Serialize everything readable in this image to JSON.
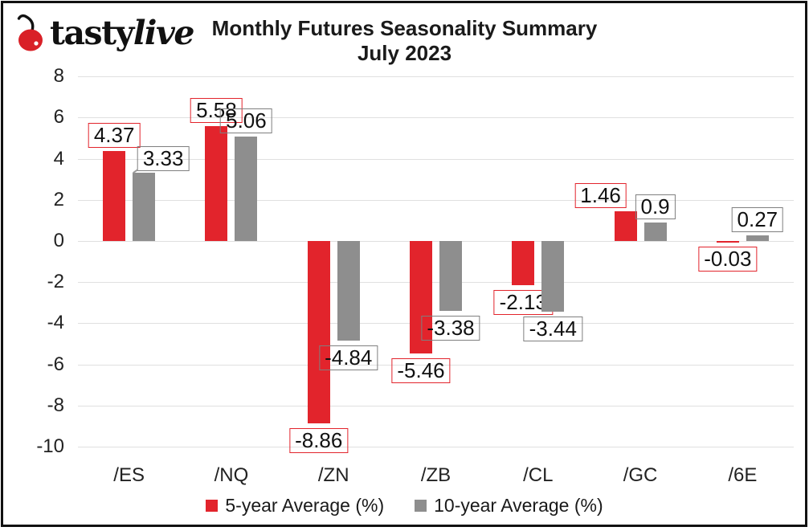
{
  "header": {
    "brand_tasty": "tasty",
    "brand_live": "live",
    "title_line1": "Monthly Futures Seasonality Summary",
    "title_line2": "July 2023"
  },
  "chart_data": {
    "type": "bar",
    "title": "Monthly Futures Seasonality Summary",
    "subtitle": "July 2023",
    "categories": [
      "/ES",
      "/NQ",
      "/ZN",
      "/ZB",
      "/CL",
      "/GC",
      "/6E"
    ],
    "series": [
      {
        "name": "5-year Average (%)",
        "color": "#e2242c",
        "label_border": "#e2242c",
        "values": [
          4.37,
          5.58,
          -8.86,
          -5.46,
          -2.13,
          1.46,
          -0.03
        ]
      },
      {
        "name": "10-year Average (%)",
        "color": "#8e8e8e",
        "label_border": "#7f7f7f",
        "values": [
          3.33,
          5.06,
          -4.84,
          -3.38,
          -3.44,
          0.9,
          0.27
        ]
      }
    ],
    "y_ticks": [
      8,
      6,
      4,
      2,
      0,
      -2,
      -4,
      -6,
      -8,
      -10
    ],
    "ylim": [
      -10,
      8
    ],
    "grid": true,
    "legend_position": "bottom",
    "data_labels": true
  },
  "colors": {
    "bar_red": "#e2242c",
    "bar_gray": "#8e8e8e",
    "gridline": "#e0e0e0",
    "cherry_red": "#d92027",
    "text": "#111111"
  }
}
